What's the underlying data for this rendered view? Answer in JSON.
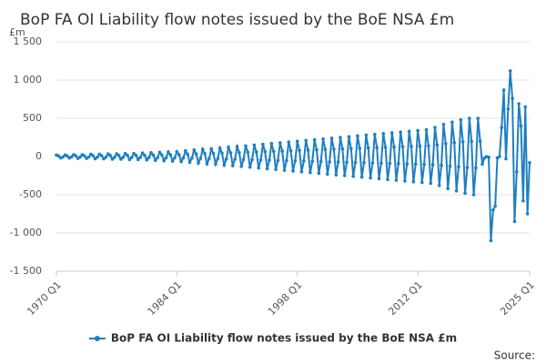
{
  "chart_data": {
    "type": "line",
    "title": "BoP FA OI Liability flow notes issued by the BoE NSA £m",
    "y_label": "£m",
    "source": "Source:",
    "legend": "bottom",
    "grid": true,
    "ylim": [
      -1500,
      1500
    ],
    "yticks": [
      {
        "value": -1500,
        "label": "-1 500"
      },
      {
        "value": -1000,
        "label": "-1 000"
      },
      -500,
      0,
      500,
      {
        "value": 1000,
        "label": "1 000"
      },
      {
        "value": 1500,
        "label": "1 500"
      }
    ],
    "categories": [
      "1970 Q1",
      null,
      null,
      null,
      null,
      null,
      null,
      null,
      null,
      null,
      null,
      null,
      null,
      null,
      null,
      null,
      null,
      null,
      null,
      null,
      null,
      null,
      null,
      null,
      null,
      null,
      null,
      null,
      null,
      null,
      null,
      null,
      null,
      null,
      null,
      null,
      null,
      null,
      null,
      null,
      null,
      null,
      null,
      null,
      null,
      null,
      null,
      null,
      null,
      null,
      null,
      null,
      null,
      null,
      null,
      null,
      "1984 Q1",
      null,
      null,
      null,
      null,
      null,
      null,
      null,
      null,
      null,
      null,
      null,
      null,
      null,
      null,
      null,
      null,
      null,
      null,
      null,
      null,
      null,
      null,
      null,
      null,
      null,
      null,
      null,
      null,
      null,
      null,
      null,
      null,
      null,
      null,
      null,
      null,
      null,
      null,
      null,
      null,
      null,
      null,
      null,
      null,
      null,
      null,
      null,
      null,
      null,
      null,
      null,
      null,
      null,
      null,
      null,
      "1998 Q1",
      null,
      null,
      null,
      null,
      null,
      null,
      null,
      null,
      null,
      null,
      null,
      null,
      null,
      null,
      null,
      null,
      null,
      null,
      null,
      null,
      null,
      null,
      null,
      null,
      null,
      null,
      null,
      null,
      null,
      null,
      null,
      null,
      null,
      null,
      null,
      null,
      null,
      null,
      null,
      null,
      null,
      null,
      null,
      null,
      null,
      null,
      null,
      null,
      null,
      null,
      null,
      null,
      null,
      null,
      null,
      "2012 Q1",
      null,
      null,
      null,
      null,
      null,
      null,
      null,
      null,
      null,
      null,
      null,
      null,
      null,
      null,
      null,
      null,
      null,
      null,
      null,
      null,
      null,
      null,
      null,
      null,
      null,
      null,
      null,
      null,
      null,
      null,
      null,
      null,
      null,
      null,
      null,
      null,
      null,
      null,
      null,
      null,
      null,
      null,
      null,
      null,
      null,
      null,
      null,
      null,
      null,
      null,
      null,
      "2025 Q1"
    ],
    "series": [
      {
        "name": "BoP FA OI Liability flow notes issued by the BoE NSA £m",
        "color": "#1f7fc0",
        "values": [
          20,
          8,
          -20,
          -6,
          20,
          8,
          -20,
          -6,
          25,
          10,
          -25,
          -8,
          25,
          10,
          -25,
          -8,
          30,
          12,
          -30,
          -9,
          30,
          12,
          -30,
          -9,
          35,
          14,
          -35,
          -11,
          35,
          14,
          -35,
          -11,
          40,
          16,
          -40,
          -12,
          40,
          16,
          -40,
          -12,
          45,
          18,
          -45,
          -14,
          50,
          20,
          -50,
          -15,
          55,
          22,
          -55,
          -17,
          60,
          24,
          -60,
          -18,
          65,
          26,
          -65,
          -20,
          75,
          30,
          -75,
          -23,
          85,
          34,
          -85,
          -26,
          95,
          38,
          -95,
          -29,
          100,
          40,
          -100,
          -30,
          110,
          44,
          -110,
          -33,
          120,
          48,
          -120,
          -36,
          130,
          52,
          -130,
          -39,
          140,
          56,
          -140,
          -42,
          150,
          60,
          -150,
          -45,
          160,
          64,
          -160,
          -48,
          170,
          68,
          -170,
          -51,
          180,
          72,
          -180,
          -54,
          190,
          76,
          -190,
          -57,
          200,
          80,
          -200,
          -60,
          210,
          84,
          -210,
          -63,
          220,
          88,
          -220,
          -66,
          230,
          92,
          -230,
          -69,
          240,
          96,
          -240,
          -72,
          250,
          100,
          -250,
          -75,
          260,
          104,
          -260,
          -78,
          270,
          108,
          -270,
          -81,
          280,
          112,
          -280,
          -84,
          290,
          116,
          -290,
          -87,
          300,
          120,
          -300,
          -90,
          310,
          124,
          -310,
          -93,
          320,
          128,
          -320,
          -96,
          330,
          132,
          -330,
          -99,
          340,
          136,
          -340,
          -102,
          350,
          140,
          -350,
          -105,
          380,
          152,
          -380,
          -114,
          420,
          168,
          -420,
          -126,
          450,
          180,
          -450,
          -135,
          480,
          192,
          -480,
          -144,
          500,
          200,
          -500,
          -150,
          500,
          200,
          -100,
          -20,
          0,
          -10,
          -1100,
          -700,
          -650,
          -20,
          0,
          380,
          870,
          -30,
          620,
          1120,
          760,
          -850,
          -200,
          690,
          400,
          -580,
          650,
          -750,
          -80
        ]
      }
    ]
  }
}
